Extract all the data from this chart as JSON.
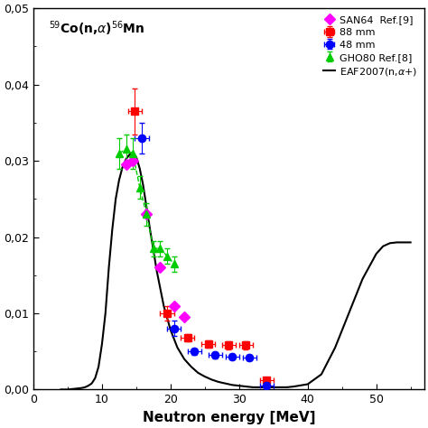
{
  "title_label": "$^{59}$Co(n,$\\alpha$)$^{56}$Mn",
  "xlabel": "Neutron energy [MeV]",
  "xlim": [
    0,
    57
  ],
  "ylim": [
    0,
    0.05
  ],
  "yticks": [
    0.0,
    0.01,
    0.02,
    0.03,
    0.04,
    0.05
  ],
  "xticks": [
    0,
    10,
    20,
    30,
    40,
    50
  ],
  "series_88mm": {
    "x": [
      14.8,
      19.5,
      22.5,
      25.5,
      28.5,
      31.0,
      34.0
    ],
    "y": [
      0.0365,
      0.01,
      0.0068,
      0.006,
      0.0058,
      0.0058,
      0.0012
    ],
    "xerr": [
      1.0,
      1.0,
      1.0,
      1.0,
      1.0,
      1.0,
      1.0
    ],
    "yerr": [
      0.003,
      0.001,
      0.0005,
      0.0005,
      0.0005,
      0.0005,
      0.0003
    ],
    "color": "#FF0000",
    "marker": "s",
    "label": "88 mm",
    "markersize": 6
  },
  "series_48mm": {
    "x": [
      15.8,
      20.5,
      23.5,
      26.5,
      29.0,
      31.5,
      34.0
    ],
    "y": [
      0.033,
      0.008,
      0.005,
      0.0045,
      0.0043,
      0.0042,
      0.0005
    ],
    "xerr": [
      1.0,
      1.0,
      1.0,
      1.0,
      1.0,
      1.0,
      1.0
    ],
    "yerr": [
      0.002,
      0.001,
      0.0004,
      0.0004,
      0.0004,
      0.0004,
      0.0003
    ],
    "color": "#0000FF",
    "marker": "o",
    "label": "48 mm",
    "markersize": 6
  },
  "series_GHO80": {
    "x": [
      12.5,
      13.5,
      14.5,
      15.5,
      16.5,
      17.5,
      18.5,
      19.5,
      20.5
    ],
    "y": [
      0.031,
      0.0315,
      0.031,
      0.0265,
      0.023,
      0.0185,
      0.0185,
      0.0175,
      0.0165
    ],
    "yerr": [
      0.002,
      0.002,
      0.002,
      0.0015,
      0.0015,
      0.001,
      0.001,
      0.001,
      0.001
    ],
    "color": "#00CC00",
    "marker": "^",
    "label": "GHO80 Ref.[8]",
    "markersize": 6
  },
  "series_SAN64": {
    "x": [
      13.5,
      14.5,
      16.5,
      18.5,
      20.5,
      22.0
    ],
    "y": [
      0.0295,
      0.03,
      0.023,
      0.016,
      0.011,
      0.0095
    ],
    "color": "#FF00FF",
    "marker": "D",
    "label": "SAN64  Ref.[9]",
    "markersize": 6
  },
  "eaf_x": [
    4.0,
    5.0,
    6.0,
    7.0,
    7.5,
    8.0,
    8.5,
    9.0,
    9.5,
    10.0,
    10.5,
    11.0,
    11.5,
    12.0,
    12.5,
    13.0,
    13.5,
    14.0,
    14.5,
    15.0,
    15.5,
    16.0,
    17.0,
    18.0,
    19.0,
    20.0,
    21.0,
    22.0,
    23.0,
    24.0,
    25.0,
    26.0,
    27.0,
    28.0,
    29.0,
    30.0,
    31.0,
    32.0,
    33.0,
    34.0,
    35.0,
    36.0,
    37.0,
    38.0,
    40.0,
    42.0,
    44.0,
    46.0,
    48.0,
    50.0,
    51.0,
    52.0,
    53.0,
    54.0,
    55.0
  ],
  "eaf_y": [
    0.0,
    0.0,
    0.0001,
    0.0002,
    0.0003,
    0.0005,
    0.0008,
    0.0015,
    0.003,
    0.006,
    0.01,
    0.016,
    0.021,
    0.025,
    0.0275,
    0.0292,
    0.0302,
    0.0308,
    0.031,
    0.0305,
    0.029,
    0.0268,
    0.021,
    0.0155,
    0.011,
    0.0078,
    0.0055,
    0.004,
    0.003,
    0.0022,
    0.0017,
    0.0013,
    0.001,
    0.0008,
    0.0006,
    0.0005,
    0.0004,
    0.0003,
    0.0003,
    0.0003,
    0.0003,
    0.0003,
    0.0003,
    0.0004,
    0.0007,
    0.002,
    0.0055,
    0.01,
    0.0145,
    0.0178,
    0.0188,
    0.0192,
    0.0193,
    0.0193,
    0.0193
  ],
  "eaf_label": "EAF2007(n,$\\alpha$+)",
  "eaf_color": "#000000",
  "bg_color": "#FFFFFF",
  "spine_color": "#000000",
  "tick_color": "#000000"
}
